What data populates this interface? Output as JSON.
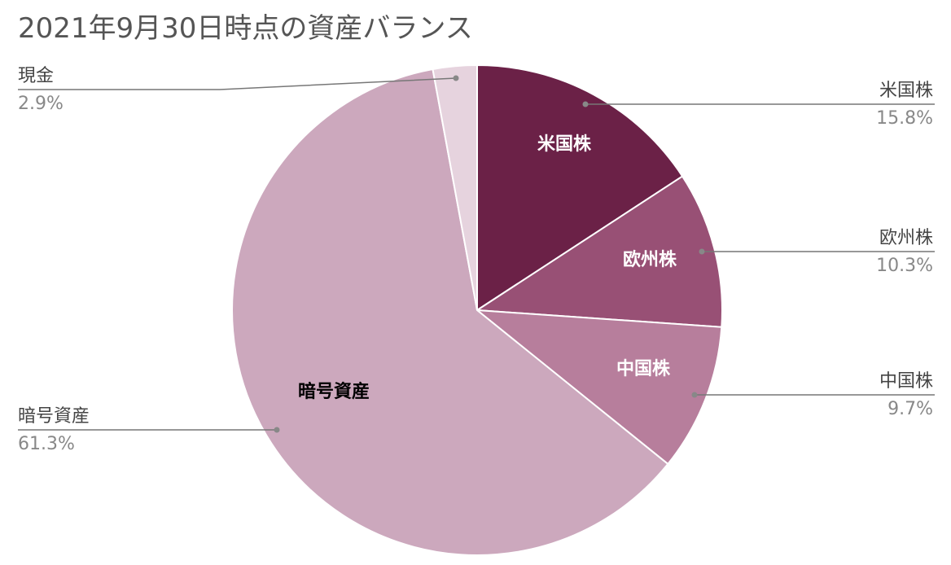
{
  "chart_data": {
    "type": "pie",
    "title": "2021年9月30日時点の資産バランス",
    "slices": [
      {
        "label": "米国株",
        "value": 15.8,
        "pct_label": "15.8%",
        "color": "#6b2147",
        "text_color": "#ffffff"
      },
      {
        "label": "欧州株",
        "value": 10.3,
        "pct_label": "10.3%",
        "color": "#985075",
        "text_color": "#ffffff"
      },
      {
        "label": "中国株",
        "value": 9.7,
        "pct_label": "9.7%",
        "color": "#b77e9c",
        "text_color": "#ffffff"
      },
      {
        "label": "暗号資産",
        "value": 61.3,
        "pct_label": "61.3%",
        "color": "#cca8bd",
        "text_color": "#000000"
      },
      {
        "label": "現金",
        "value": 2.9,
        "pct_label": "2.9%",
        "color": "#e6d3de",
        "text_color": "#000000"
      }
    ],
    "start_angle": "12 o'clock",
    "direction": "clockwise",
    "legend": "callouts on left and right"
  }
}
